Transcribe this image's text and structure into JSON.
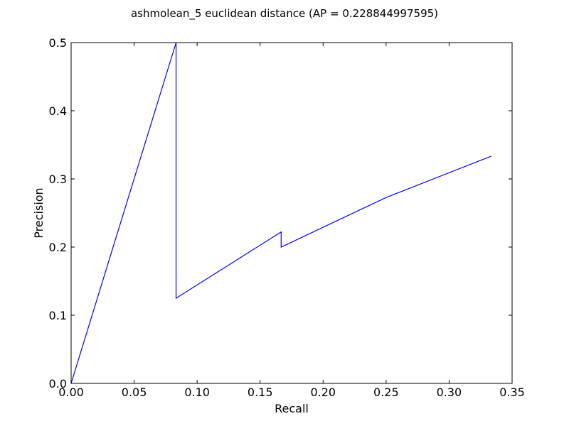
{
  "chart_data": {
    "type": "line",
    "title": "ashmolean_5 euclidean distance  (AP = 0.228844997595)",
    "xlabel": "Recall",
    "ylabel": "Precision",
    "xlim": [
      0.0,
      0.35
    ],
    "ylim": [
      0.0,
      0.5
    ],
    "grid": false,
    "legend": "none",
    "x_ticks": [
      "0.00",
      "0.05",
      "0.10",
      "0.15",
      "0.20",
      "0.25",
      "0.30",
      "0.35"
    ],
    "y_ticks": [
      "0.0",
      "0.1",
      "0.2",
      "0.3",
      "0.4",
      "0.5"
    ],
    "series": [
      {
        "color": "#0000ff",
        "x": [
          0.0,
          0.0833,
          0.0833,
          0.1667,
          0.1667,
          0.25,
          0.3333
        ],
        "y": [
          0.0,
          0.5,
          0.125,
          0.2222,
          0.2,
          0.2727,
          0.3333
        ]
      }
    ]
  }
}
